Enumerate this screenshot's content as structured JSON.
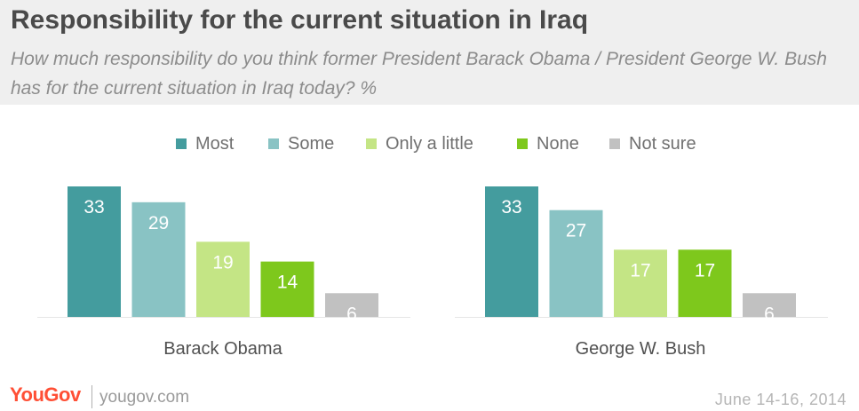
{
  "header": {
    "title": "Responsibility for the current situation in Iraq",
    "subtitle": "How much responsibility do you think former President Barack Obama / President George W. Bush has for the current situation in Iraq today? %"
  },
  "chart_data": {
    "type": "bar",
    "title": "Responsibility for the current situation in Iraq",
    "categories": [
      "Barack Obama",
      "George W. Bush"
    ],
    "series": [
      {
        "name": "Most",
        "color": "#449c9e",
        "values": [
          33,
          33
        ]
      },
      {
        "name": "Some",
        "color": "#89c3c4",
        "values": [
          29,
          27
        ]
      },
      {
        "name": "Only a little",
        "color": "#c4e585",
        "values": [
          19,
          17
        ]
      },
      {
        "name": "None",
        "color": "#7ec81c",
        "values": [
          14,
          17
        ]
      },
      {
        "name": "Not sure",
        "color": "#c1c1c1",
        "values": [
          6,
          6
        ]
      }
    ],
    "ylim": [
      0,
      33
    ],
    "legend_position": "top",
    "grid": false,
    "data_labels": true
  },
  "footer": {
    "logo": "YouGov",
    "url": "yougov.com",
    "date": "June 14-16, 2014"
  }
}
